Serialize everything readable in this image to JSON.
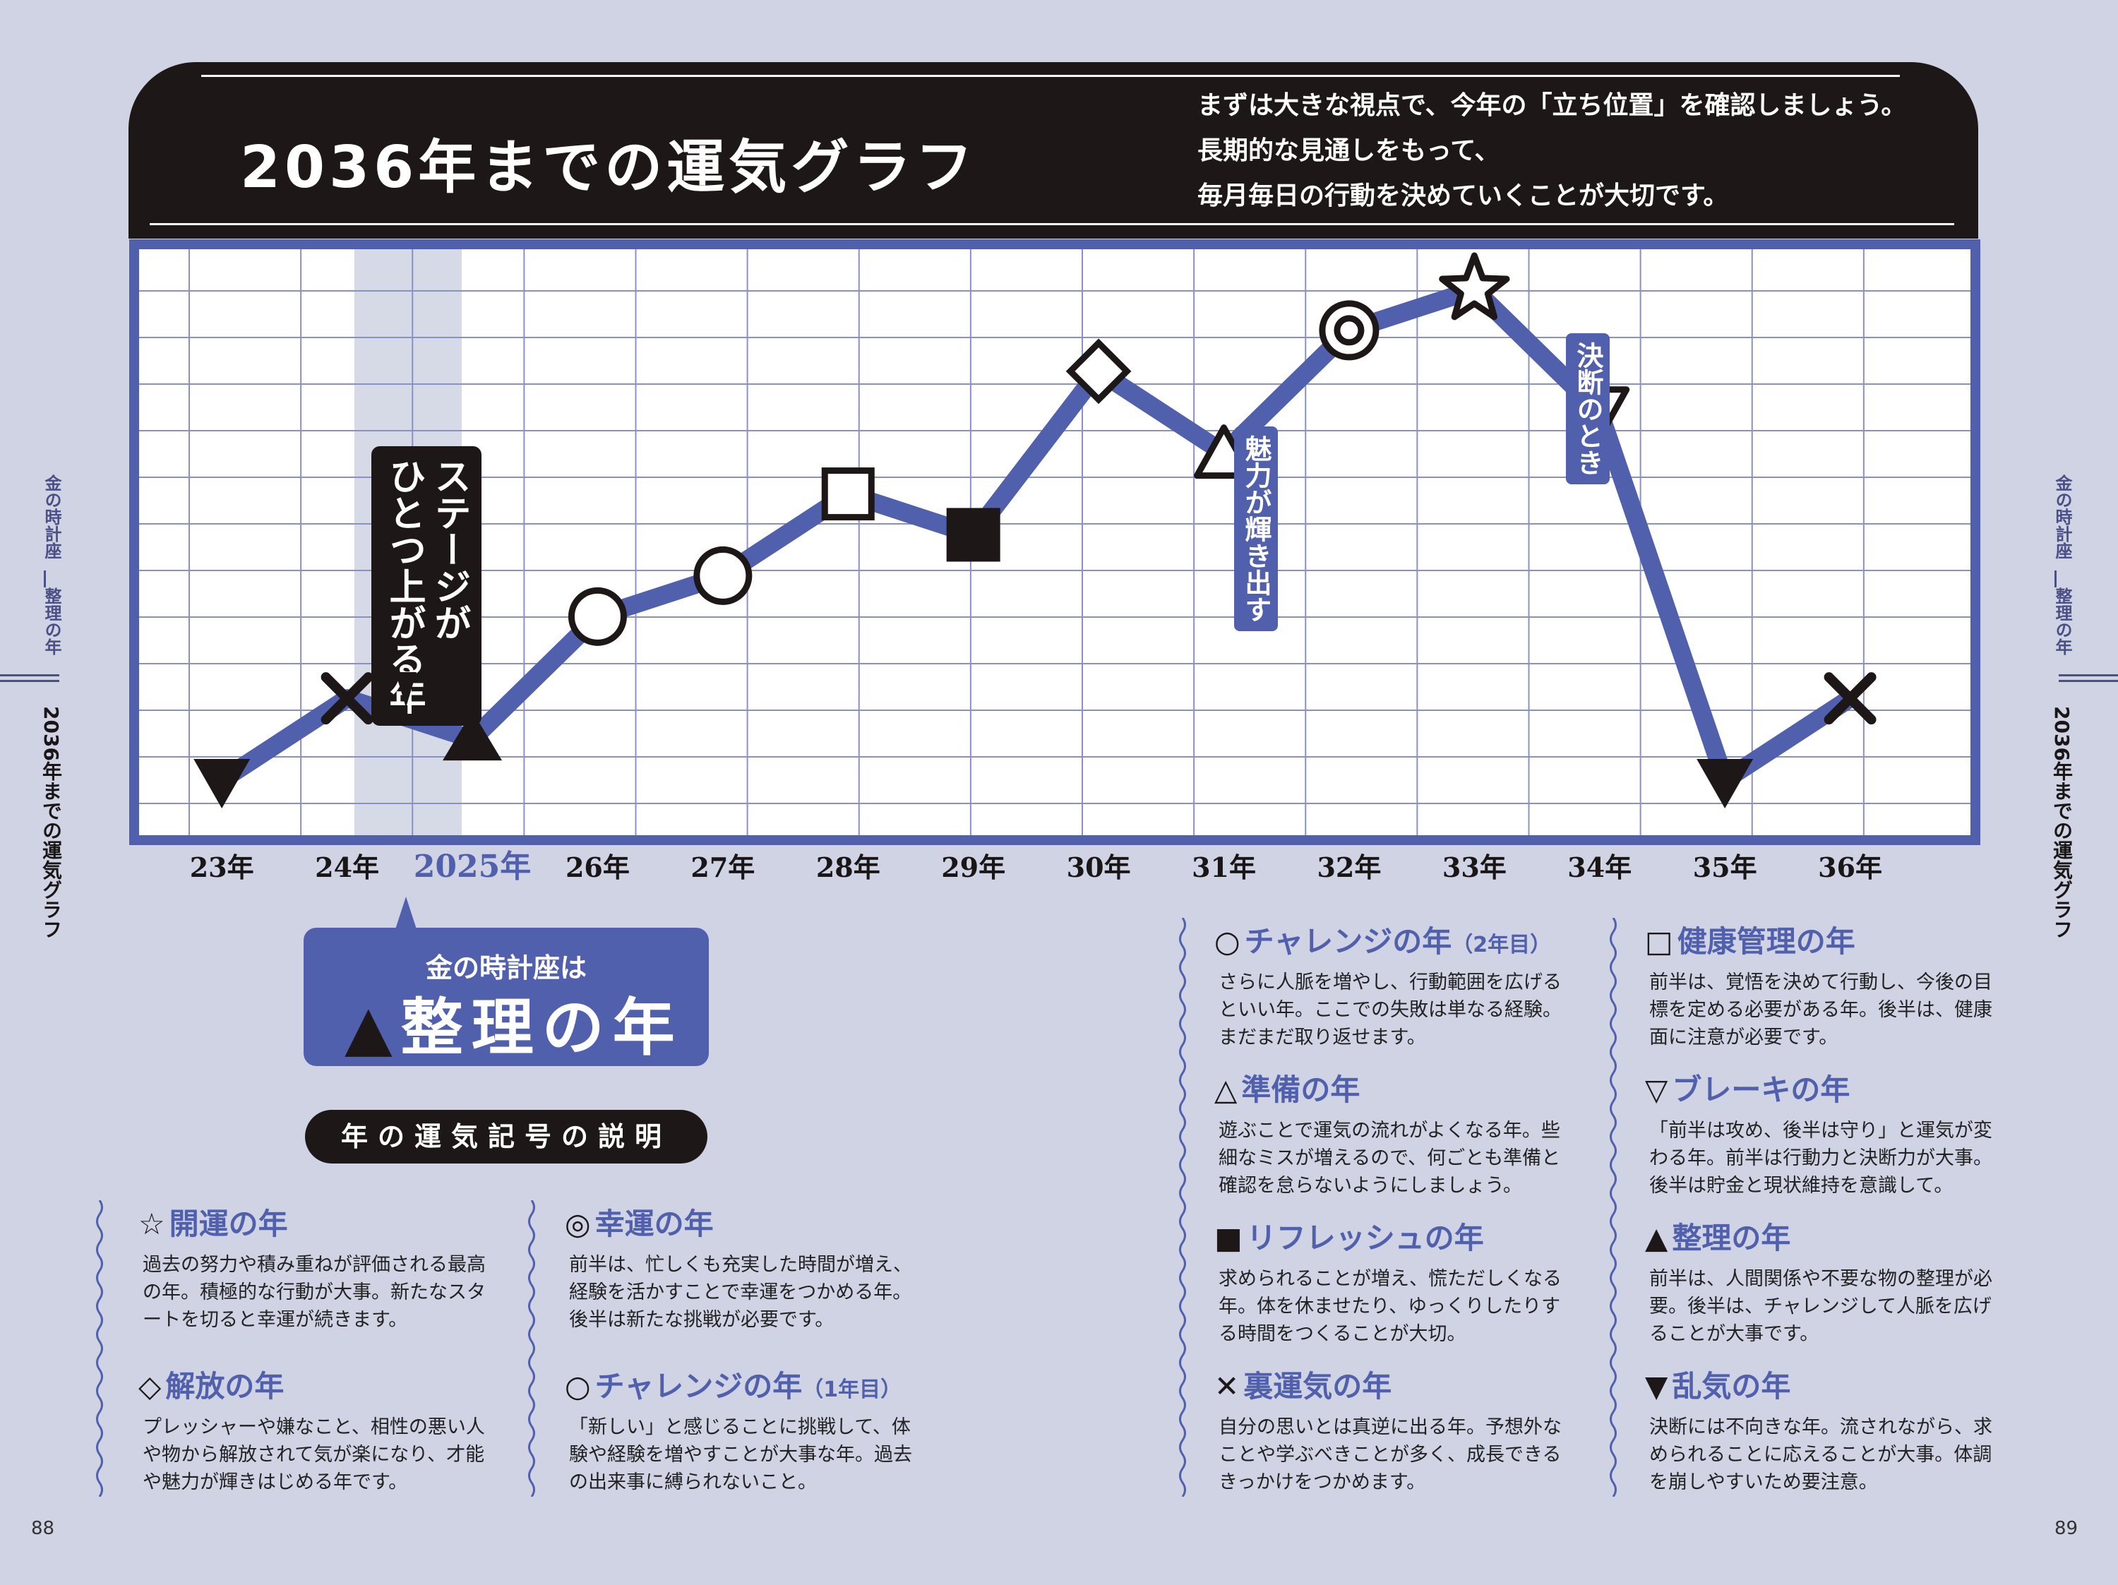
{
  "header": {
    "title": "2036年までの運気グラフ",
    "intro": [
      "まずは大きな視点で、今年の「立ち位置」を確認しましょう。",
      "長期的な見通しをもって、",
      "毎月毎日の行動を決めていくことが大切です。"
    ]
  },
  "side": {
    "left_top": "金の時計座",
    "left_mid": "整理の年",
    "left_bottom": "2036年までの運気グラフ",
    "right_top": "金の時計座",
    "right_mid": "整理の年",
    "right_bottom": "2036年までの運気グラフ"
  },
  "callouts": {
    "stage": [
      "ステージが",
      "ひとつ上がる年"
    ],
    "charm": "魅力が輝き出す",
    "decision": "決断のとき"
  },
  "badge": {
    "top": "金の時計座は",
    "main": "整理の年",
    "symbol": "▲"
  },
  "legend": {
    "heading": "年の運気記号の説明",
    "items": [
      {
        "symbol": "☆",
        "title": "開運の年",
        "sub": "",
        "desc": "過去の努力や積み重ねが評価される最高の年。積極的な行動が大事。新たなスタートを切ると幸運が続きます。"
      },
      {
        "symbol": "◎",
        "title": "幸運の年",
        "sub": "",
        "desc": "前半は、忙しくも充実した時間が増え、経験を活かすことで幸運をつかめる年。後半は新たな挑戦が必要です。"
      },
      {
        "symbol": "◇",
        "title": "解放の年",
        "sub": "",
        "desc": "プレッシャーや嫌なこと、相性の悪い人や物から解放されて気が楽になり、才能や魅力が輝きはじめる年です。"
      },
      {
        "symbol": "○",
        "title": "チャレンジの年",
        "sub": "（1年目）",
        "desc": "「新しい」と感じることに挑戦して、体験や経験を増やすことが大事な年。過去の出来事に縛られないこと。"
      },
      {
        "symbol": "○",
        "title": "チャレンジの年",
        "sub": "（2年目）",
        "desc": "さらに人脈を増やし、行動範囲を広げるといい年。ここでの失敗は単なる経験。まだまだ取り返せます。"
      },
      {
        "symbol": "△",
        "title": "準備の年",
        "sub": "",
        "desc": "遊ぶことで運気の流れがよくなる年。些細なミスが増えるので、何ごとも準備と確認を怠らないようにしましょう。"
      },
      {
        "symbol": "■",
        "title": "リフレッシュの年",
        "sub": "",
        "desc": "求められることが増え、慌ただしくなる年。体を休ませたり、ゆっくりしたりする時間をつくることが大切。"
      },
      {
        "symbol": "✕",
        "title": "裏運気の年",
        "sub": "",
        "desc": "自分の思いとは真逆に出る年。予想外なことや学ぶべきことが多く、成長できるきっかけをつかめます。"
      },
      {
        "symbol": "□",
        "title": "健康管理の年",
        "sub": "",
        "desc": "前半は、覚悟を決めて行動し、今後の目標を定める必要がある年。後半は、健康面に注意が必要です。"
      },
      {
        "symbol": "▽",
        "title": "ブレーキの年",
        "sub": "",
        "desc": "「前半は攻め、後半は守り」と運気が変わる年。前半は行動力と決断力が大事。後半は貯金と現状維持を意識して。"
      },
      {
        "symbol": "▲",
        "title": "整理の年",
        "sub": "",
        "desc": "前半は、人間関係や不要な物の整理が必要。後半は、チャレンジして人脈を広げることが大事です。"
      },
      {
        "symbol": "▼",
        "title": "乱気の年",
        "sub": "",
        "desc": "決断には不向きな年。流されながら、求められることに応えることが大事。体調を崩しやすいため要注意。"
      }
    ]
  },
  "pages": {
    "left": "88",
    "right": "89"
  },
  "chart_data": {
    "type": "line",
    "title": "2036年までの運気グラフ",
    "xlabel": "",
    "ylabel": "",
    "categories": [
      "23年",
      "24年",
      "2025年",
      "26年",
      "27年",
      "28年",
      "29年",
      "30年",
      "31年",
      "32年",
      "33年",
      "34年",
      "35年",
      "36年"
    ],
    "years": [
      2023,
      2024,
      2025,
      2026,
      2027,
      2028,
      2029,
      2030,
      2031,
      2032,
      2033,
      2034,
      2035,
      2036
    ],
    "values": [
      1,
      3,
      2,
      5,
      6,
      8,
      7,
      11,
      9,
      12,
      13,
      10,
      1,
      3
    ],
    "markers": [
      "▼",
      "✕",
      "▲",
      "○",
      "○",
      "□",
      "■",
      "◇",
      "△",
      "◎",
      "☆",
      "▽",
      "▼",
      "✕"
    ],
    "highlight": "2025年",
    "ylim": [
      0,
      13
    ],
    "grid": true,
    "colors": {
      "line": "#5060ad",
      "border": "#5060ad",
      "grid": "#8a90c6",
      "highlight": "#d6d9e6",
      "dark": "#1d1717"
    }
  }
}
